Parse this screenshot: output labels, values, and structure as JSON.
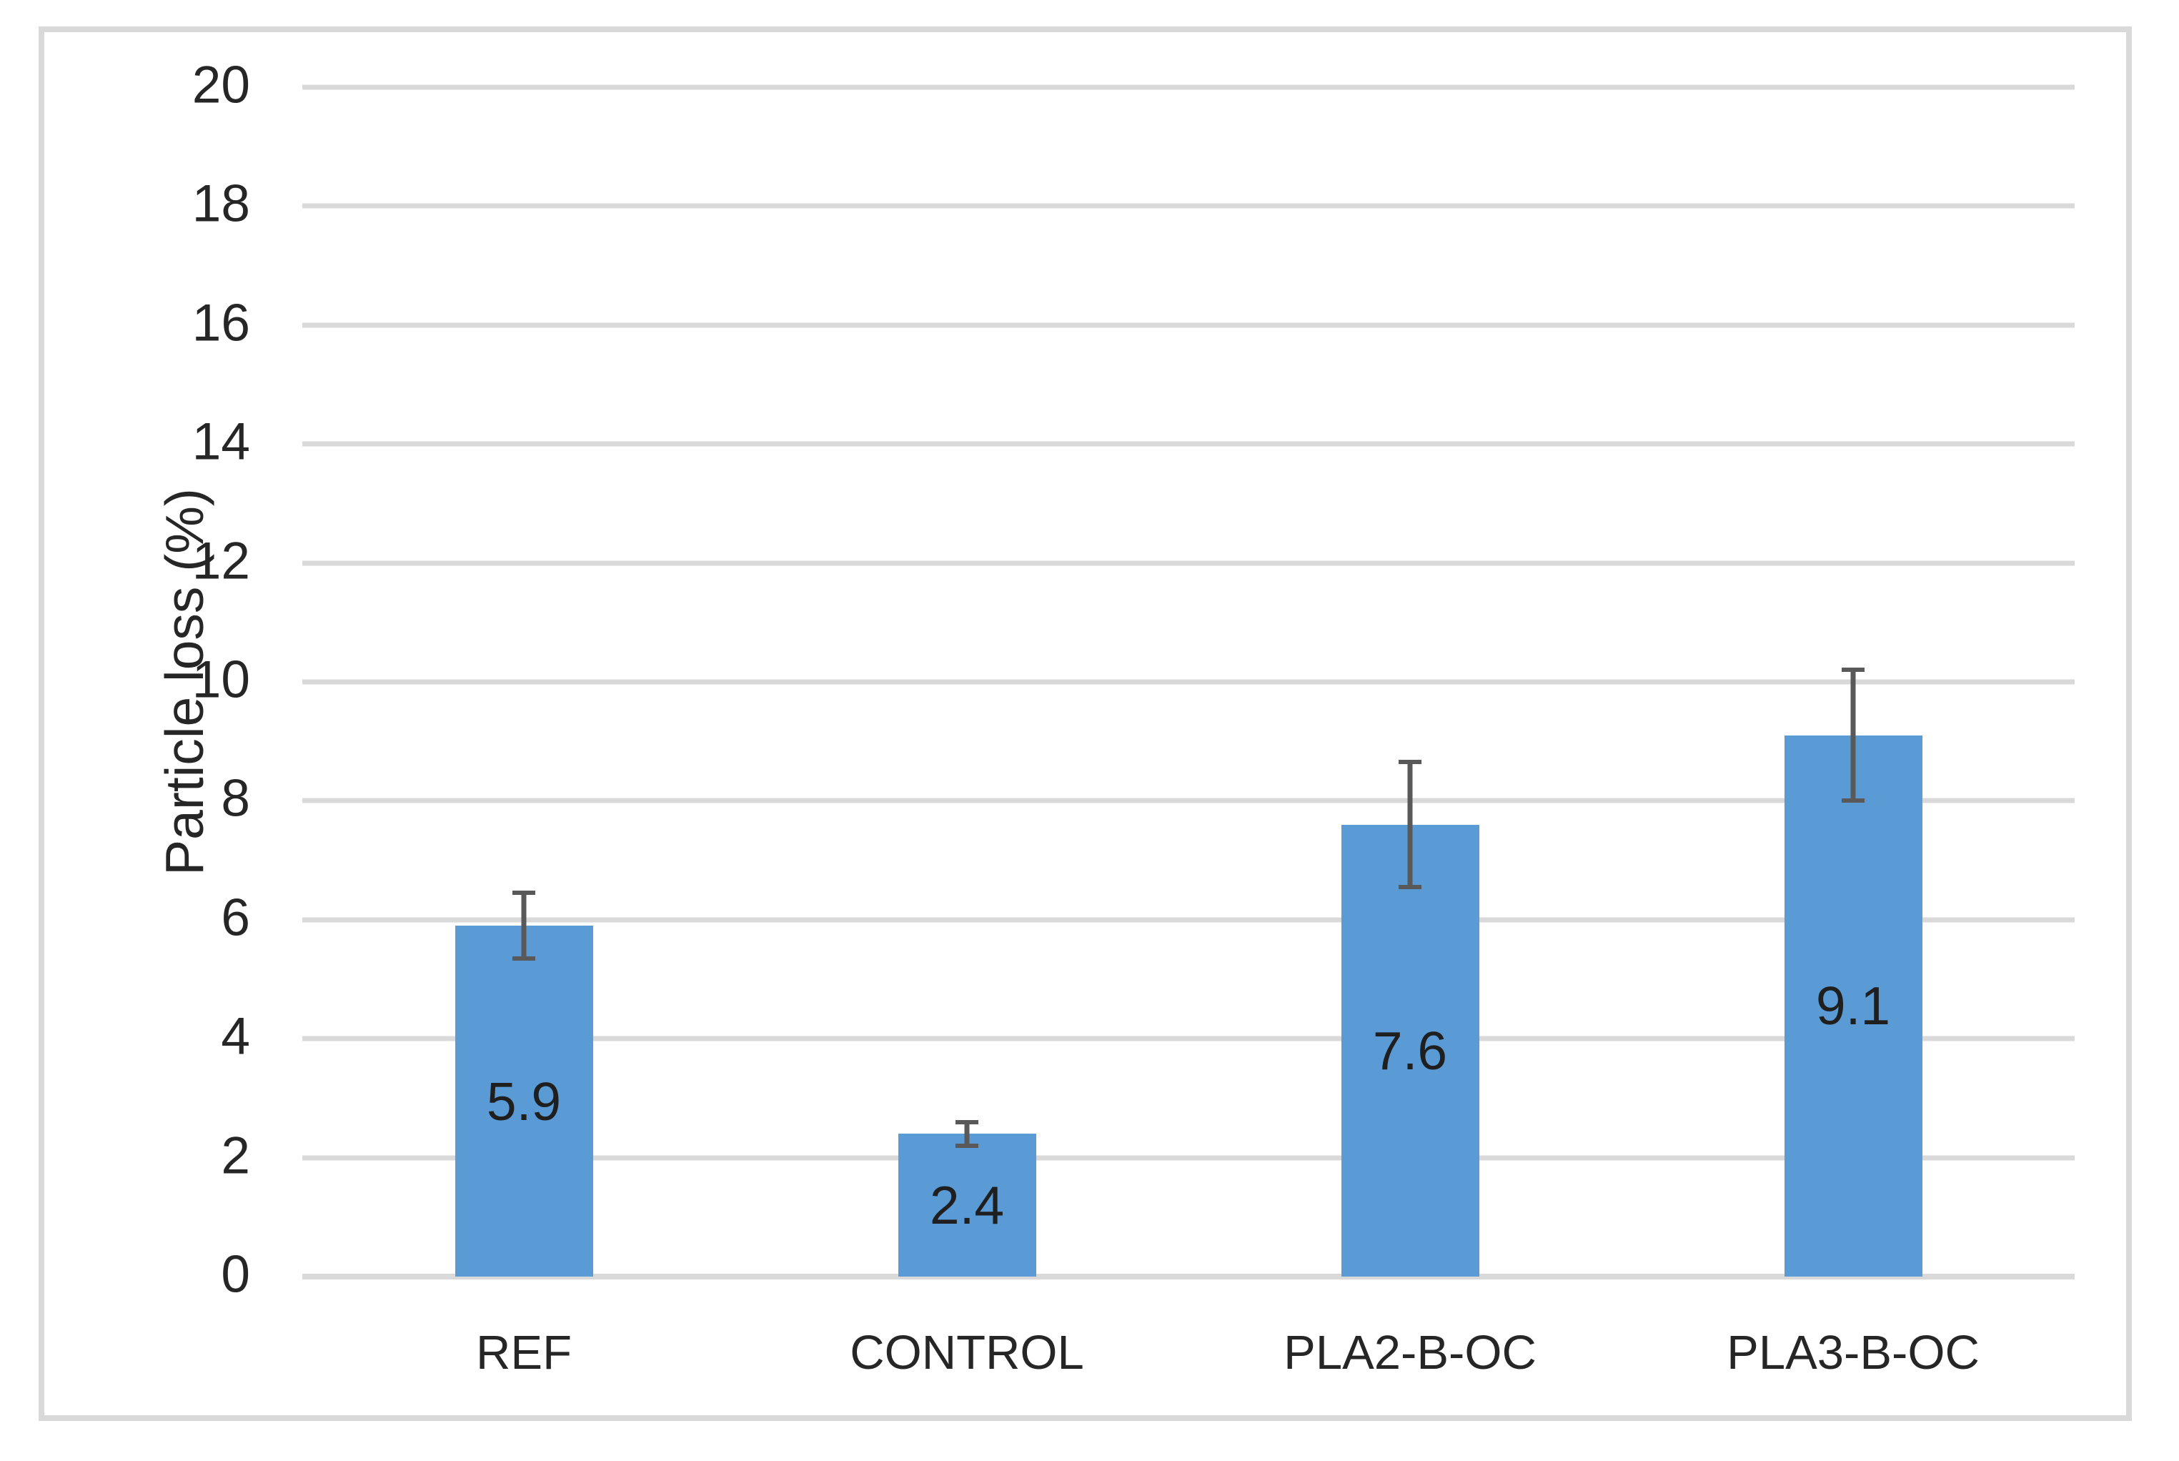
{
  "chart_data": {
    "type": "bar",
    "title": "",
    "xlabel": "",
    "ylabel": "Particle loss (%)",
    "categories": [
      "REF",
      "CONTROL",
      "PLA2-B-OC",
      "PLA3-B-OC"
    ],
    "values": [
      5.9,
      2.4,
      7.6,
      9.1
    ],
    "data_labels": [
      "5.9",
      "2.4",
      "7.6",
      "9.1"
    ],
    "error_bars": {
      "type": "symmetric",
      "values": [
        0.55,
        0.2,
        1.05,
        1.1
      ]
    },
    "ylim": [
      0,
      20
    ],
    "yticks": [
      0,
      2,
      4,
      6,
      8,
      10,
      12,
      14,
      16,
      18,
      20
    ],
    "grid": "horizontal",
    "legend": "none",
    "colors": {
      "bar_fill": "#5B9BD5",
      "gridline": "#D9D9D9",
      "axis_line": "#D9D9D9",
      "chart_border": "#D9D9D9",
      "error_bar": "#595959",
      "tick_text": "#262626",
      "category_text": "#262626",
      "data_label_text": "#1F1F1F",
      "background": "#FFFFFF"
    }
  }
}
